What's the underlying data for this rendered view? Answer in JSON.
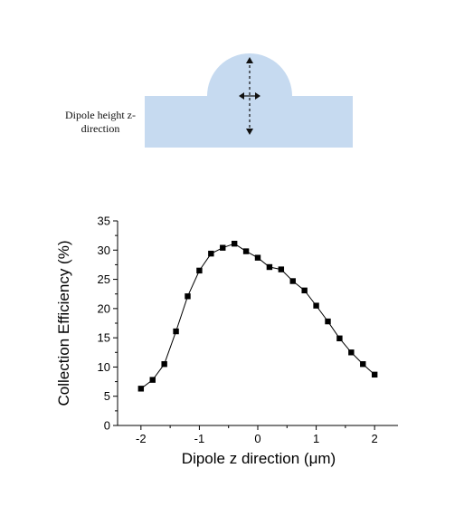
{
  "diagram": {
    "label": "Dipole height z-direction",
    "fill_color": "#c6daf0",
    "arrow_color": "#111111"
  },
  "chart_data": {
    "type": "line",
    "title": "",
    "xlabel": "Dipole z direction (μm)",
    "ylabel": "Collection Efficiency (%)",
    "xlim": [
      -2.4,
      2.4
    ],
    "ylim": [
      0,
      35
    ],
    "xticks": [
      -2,
      -1,
      0,
      1,
      2
    ],
    "xtick_labels": [
      "-2",
      "-1",
      "0",
      "1",
      "2"
    ],
    "yticks": [
      0,
      5,
      10,
      15,
      20,
      25,
      30,
      35
    ],
    "ytick_labels": [
      "0",
      "5",
      "10",
      "15",
      "20",
      "25",
      "30",
      "35"
    ],
    "grid": false,
    "legend": false,
    "marker": "square",
    "line_color": "#000000",
    "series": [
      {
        "x": [
          -2.0,
          -1.8,
          -1.6,
          -1.4,
          -1.2,
          -1.0,
          -0.8,
          -0.6,
          -0.4,
          -0.2,
          0.0,
          0.2,
          0.4,
          0.6,
          0.8,
          1.0,
          1.2,
          1.4,
          1.6,
          1.8,
          2.0
        ],
        "y": [
          6.3,
          7.8,
          10.5,
          16.1,
          22.1,
          26.5,
          29.4,
          30.4,
          31.1,
          29.8,
          28.7,
          27.1,
          26.7,
          24.7,
          23.1,
          20.5,
          17.8,
          14.9,
          12.5,
          10.5,
          8.7
        ]
      }
    ]
  }
}
